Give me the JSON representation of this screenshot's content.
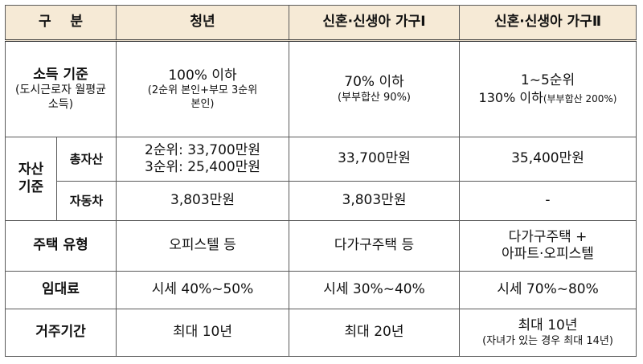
{
  "header": {
    "category": "구    분",
    "youth": "청년",
    "newlywed1": "신혼·신생아 가구Ⅰ",
    "newlywed2": "신혼·신생아 가구Ⅱ"
  },
  "rows": {
    "income": {
      "label": "소득 기준",
      "label_note": "(도시근로자 월평균 소득)",
      "youth_main": "100% 이하",
      "youth_note": "(2순위 본인+부모 3순위 본인)",
      "nw1_main": "70% 이하",
      "nw1_note": "(부부합산 90%)",
      "nw2_main": "1~5순위",
      "nw2_line2": "130% 이하",
      "nw2_note": "(부부합산 200%)"
    },
    "asset": {
      "label": "자산 기준",
      "total_label": "총자산",
      "youth_total_1": "2순위: 33,700만원",
      "youth_total_2": "3순위: 25,400만원",
      "nw1_total": "33,700만원",
      "nw2_total": "35,400만원",
      "car_label": "자동차",
      "youth_car": "3,803만원",
      "nw1_car": "3,803만원",
      "nw2_car": "-"
    },
    "house": {
      "label": "주택 유형",
      "youth": "오피스텔 등",
      "nw1": "다가구주택 등",
      "nw2_1": "다가구주택 +",
      "nw2_2": "아파트·오피스텔"
    },
    "rent": {
      "label": "임대료",
      "youth": "시세 40%~50%",
      "nw1": "시세 30%~40%",
      "nw2": "시세 70%~80%"
    },
    "period": {
      "label": "거주기간",
      "youth": "최대 10년",
      "nw1": "최대 20년",
      "nw2_main": "최대 10년",
      "nw2_note": "(자녀가 있는 경우 최대 14년)"
    }
  }
}
